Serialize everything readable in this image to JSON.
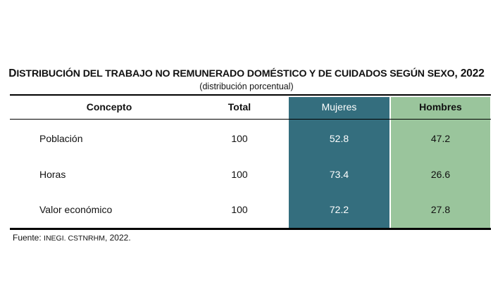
{
  "colors": {
    "mujeres_band": "#346e7e",
    "hombres_band": "#9ac59c",
    "text": "#111111",
    "on_dark_text": "#ffffff"
  },
  "title": {
    "cap_d": "D",
    "main": "ISTRIBUCIÓN DEL TRABAJO NO REMUNERADO DOMÉSTICO Y DE CUIDADOS SEGÚN SEXO",
    "year": ", 2022"
  },
  "subtitle": "(distribución porcentual)",
  "chart_data": {
    "type": "table",
    "columns": [
      "Concepto",
      "Total",
      "Mujeres",
      "Hombres"
    ],
    "rows": [
      {
        "concepto": "Población",
        "total": "100",
        "mujeres": "52.8",
        "hombres": "47.2"
      },
      {
        "concepto": "Horas",
        "total": "100",
        "mujeres": "73.4",
        "hombres": "26.6"
      },
      {
        "concepto": "Valor económico",
        "total": "100",
        "mujeres": "72.2",
        "hombres": "27.8"
      }
    ]
  },
  "source": {
    "label": "Fuente: ",
    "org": "INEGI. CSTNRHM",
    "year": ", 2022."
  }
}
